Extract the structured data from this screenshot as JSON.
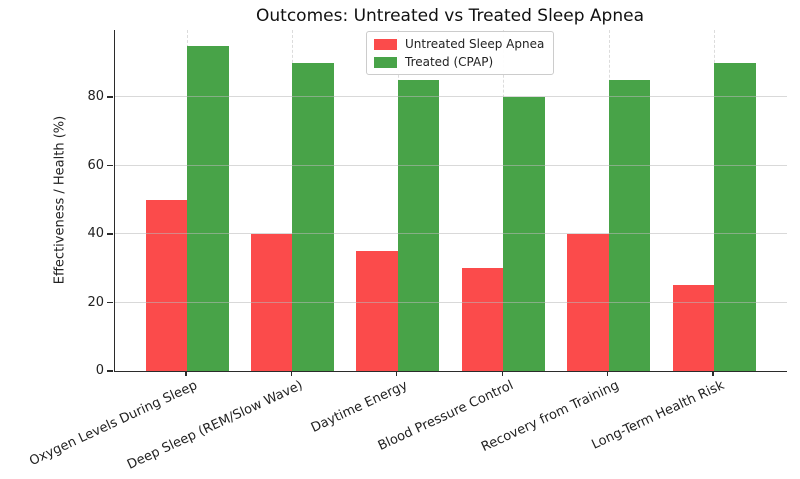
{
  "chart_data": {
    "type": "bar",
    "title": "Outcomes: Untreated vs Treated Sleep Apnea",
    "ylabel": "Effectiveness / Health (%)",
    "xlabel": "",
    "categories": [
      "Oxygen Levels During Sleep",
      "Deep Sleep (REM/Slow Wave)",
      "Daytime Energy",
      "Blood Pressure Control",
      "Recovery from Training",
      "Long-Term Health Risk"
    ],
    "series": [
      {
        "name": "Untreated Sleep Apnea",
        "color": "#fb4b4b",
        "values": [
          50,
          40,
          35,
          30,
          40,
          25
        ]
      },
      {
        "name": "Treated (CPAP)",
        "color": "#48a348",
        "values": [
          95,
          90,
          85,
          80,
          85,
          90
        ]
      }
    ],
    "yticks": [
      0,
      20,
      40,
      60,
      80
    ],
    "ylim": [
      0,
      99.6
    ],
    "grid": true,
    "legend_position": "upper center",
    "colors": {
      "grid_h": "#bdbdbd",
      "grid_v": "#dcdcdc",
      "spine": "#2b2b2b",
      "text": "#222222",
      "legend_border": "#cccccc",
      "background": "#ffffff"
    }
  }
}
